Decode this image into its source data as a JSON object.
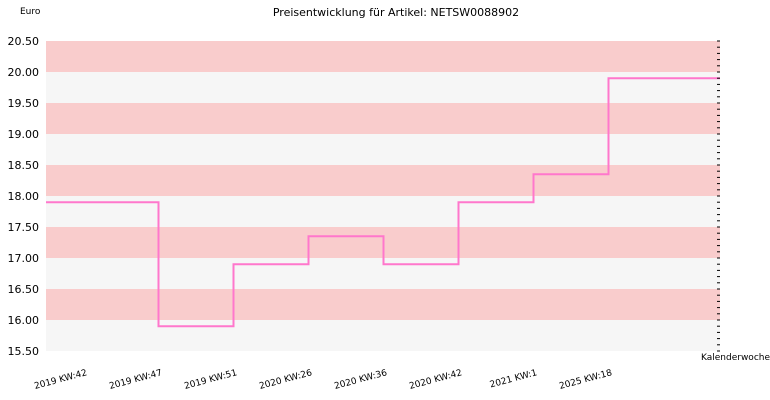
{
  "chart_data": {
    "type": "line",
    "step": true,
    "title": "Preisentwicklung für Artikel: NETSW0088902",
    "ylabel": "Euro",
    "xlabel": "Kalenderwoche",
    "ylim": [
      15.5,
      20.5
    ],
    "y_ticks": [
      "15.50",
      "16.00",
      "16.50",
      "17.00",
      "17.50",
      "18.00",
      "18.50",
      "19.00",
      "19.50",
      "20.00",
      "20.50"
    ],
    "categories": [
      "2019 KW:42",
      "2019 KW:47",
      "2019 KW:51",
      "2020 KW:26",
      "2020 KW:36",
      "2020 KW:42",
      "2021 KW:1",
      "2025 KW:18"
    ],
    "series": [
      {
        "values": [
          17.9,
          15.9,
          16.9,
          17.35,
          16.9,
          17.9,
          18.35,
          19.9
        ]
      }
    ],
    "grid": true,
    "colors": {
      "line": "#ff77cc",
      "band_dark": "#f9cccc",
      "band_light": "#f6f6f6"
    }
  }
}
